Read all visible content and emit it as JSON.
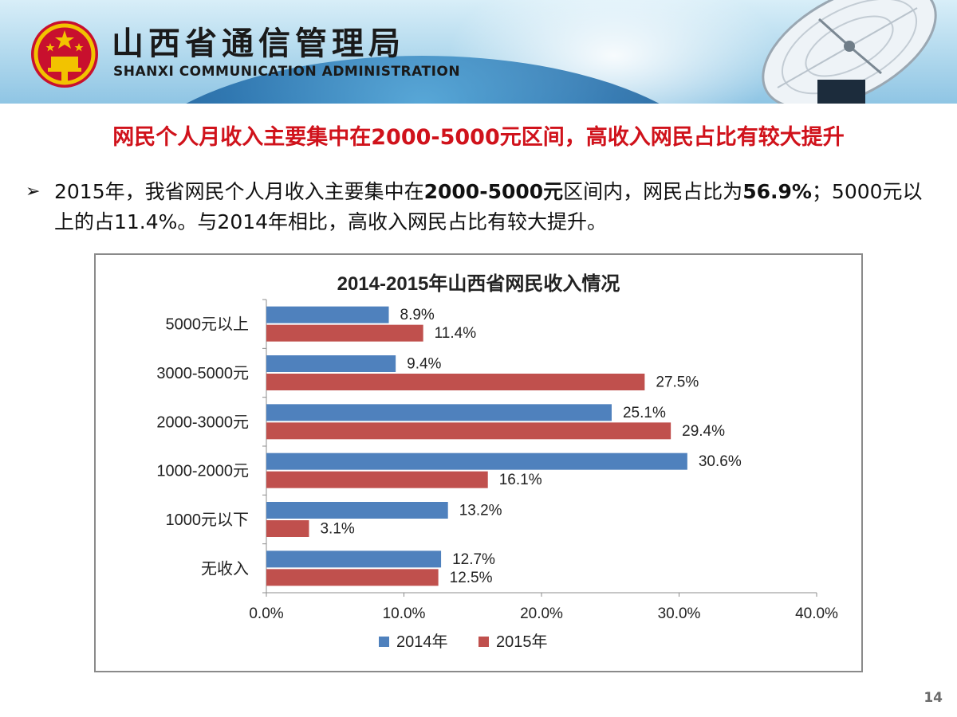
{
  "header": {
    "org_name_cn": "山西省通信管理局",
    "org_name_en": "SHANXI COMMUNICATION ADMINISTRATION",
    "emblem_icon": "national-emblem-icon",
    "banner_image": "satellite-dish-icon"
  },
  "headline": "网民个人月收入主要集中在2000-5000元区间，高收入网民占比有较大提升",
  "bullet": {
    "marker": "➢",
    "parts": [
      {
        "text": "2015年，我省网民个人月收入主要集中在",
        "bold": false
      },
      {
        "text": "2000-5000元",
        "bold": true
      },
      {
        "text": "区间内，网民占比为",
        "bold": false
      },
      {
        "text": "56.9%",
        "bold": true
      },
      {
        "text": "；5000元以上的占11.4%。与2014年相比，高收入网民占比有较大提升。",
        "bold": false
      }
    ]
  },
  "page_number": "14",
  "colors": {
    "headline": "#d0121b",
    "series_2014": "#4f81bd",
    "series_2015": "#c0504d"
  },
  "chart_data": {
    "type": "bar",
    "orientation": "horizontal",
    "title": "2014-2015年山西省网民收入情况",
    "categories": [
      "5000元以上",
      "3000-5000元",
      "2000-3000元",
      "1000-2000元",
      "1000元以下",
      "无收入"
    ],
    "series": [
      {
        "name": "2014年",
        "color": "#4f81bd",
        "values": [
          8.9,
          9.4,
          25.1,
          30.6,
          13.2,
          12.7
        ],
        "labels": [
          "8.9%",
          "9.4%",
          "25.1%",
          "30.6%",
          "13.2%",
          "12.7%"
        ]
      },
      {
        "name": "2015年",
        "color": "#c0504d",
        "values": [
          11.4,
          27.5,
          29.4,
          16.1,
          3.1,
          12.5
        ],
        "labels": [
          "11.4%",
          "27.5%",
          "29.4%",
          "16.1%",
          "3.1%",
          "12.5%"
        ]
      }
    ],
    "x_ticks": [
      0,
      10,
      20,
      30,
      40
    ],
    "x_tick_labels": [
      "0.0%",
      "10.0%",
      "20.0%",
      "30.0%",
      "40.0%"
    ],
    "xlim": [
      0,
      40
    ],
    "xlabel": "",
    "ylabel": "",
    "grid": false,
    "legend_position": "bottom"
  }
}
